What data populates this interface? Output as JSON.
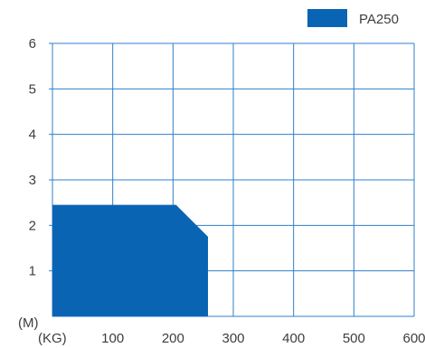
{
  "chart_data": {
    "type": "area",
    "title": "",
    "xlabel": "",
    "ylabel": "",
    "x_unit_label": "(KG)",
    "y_unit_label": "(M)",
    "xlim": [
      0,
      600
    ],
    "ylim": [
      0,
      6
    ],
    "x_ticks": [
      100,
      200,
      300,
      400,
      500,
      600
    ],
    "y_ticks": [
      1,
      2,
      3,
      4,
      5,
      6
    ],
    "grid": true,
    "legend_position": "top-right",
    "series": [
      {
        "name": "PA250",
        "color": "#0a64b4",
        "points": [
          {
            "x": 0,
            "y": 0
          },
          {
            "x": 0,
            "y": 2.45
          },
          {
            "x": 205,
            "y": 2.45
          },
          {
            "x": 258,
            "y": 1.75
          },
          {
            "x": 258,
            "y": 0
          }
        ]
      }
    ]
  },
  "colors": {
    "grid": "#2f7fc8",
    "text": "#3d3d3d",
    "background": "#ffffff"
  }
}
